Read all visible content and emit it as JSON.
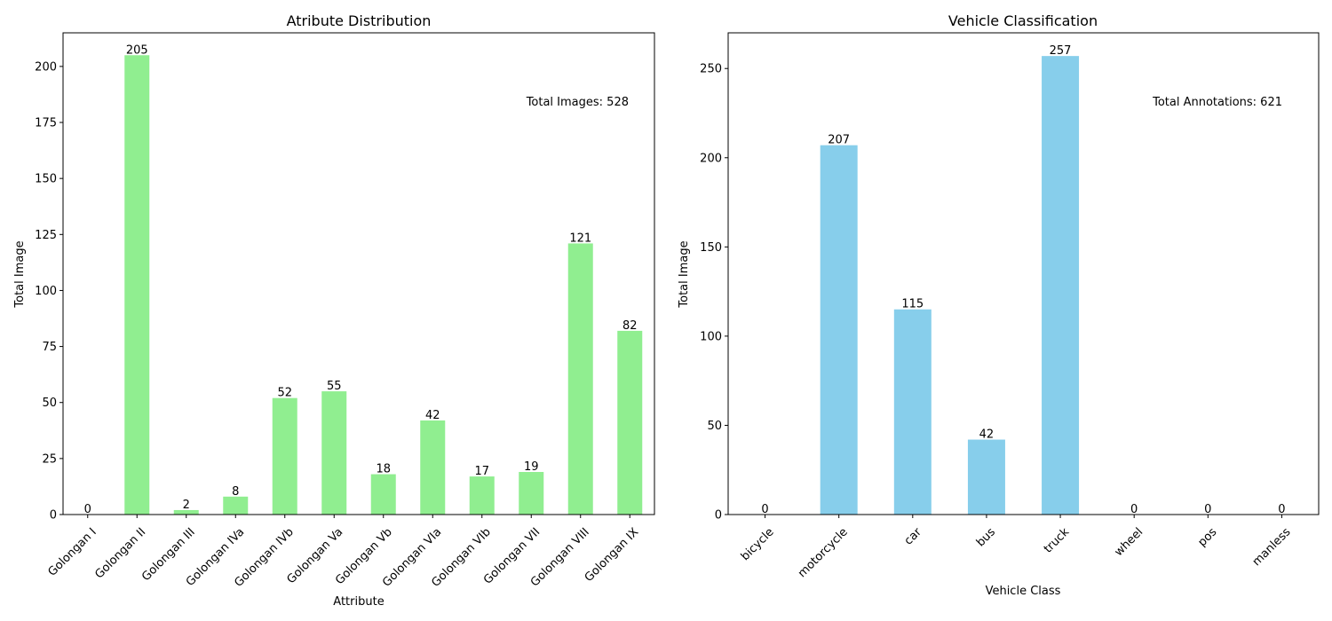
{
  "chart_data": [
    {
      "type": "bar",
      "title": "Atribute Distribution",
      "xlabel": "Attribute",
      "ylabel": "Total Image",
      "ylim": [
        0,
        215
      ],
      "yticks": [
        0,
        25,
        50,
        75,
        100,
        125,
        150,
        175,
        200
      ],
      "categories": [
        "Golongan I",
        "Golongan II",
        "Golongan III",
        "Golongan IVa",
        "Golongan IVb",
        "Golongan Va",
        "Golongan Vb",
        "Golongan VIa",
        "Golongan VIb",
        "Golongan VII",
        "Golongan VIII",
        "Golongan IX"
      ],
      "values": [
        0,
        205,
        2,
        8,
        52,
        55,
        18,
        42,
        17,
        19,
        121,
        82
      ],
      "color": "#90ee90",
      "annotation": "Total Images: 528",
      "grid": false
    },
    {
      "type": "bar",
      "title": "Vehicle Classification",
      "xlabel": "Vehicle Class",
      "ylabel": "Total Image",
      "ylim": [
        0,
        270
      ],
      "yticks": [
        0,
        50,
        100,
        150,
        200,
        250
      ],
      "categories": [
        "bicycle",
        "motorcycle",
        "car",
        "bus",
        "truck",
        "wheel",
        "pos",
        "manless"
      ],
      "values": [
        0,
        207,
        115,
        42,
        257,
        0,
        0,
        0
      ],
      "color": "#87ceeb",
      "annotation": "Total Annotations: 621",
      "grid": false
    }
  ]
}
